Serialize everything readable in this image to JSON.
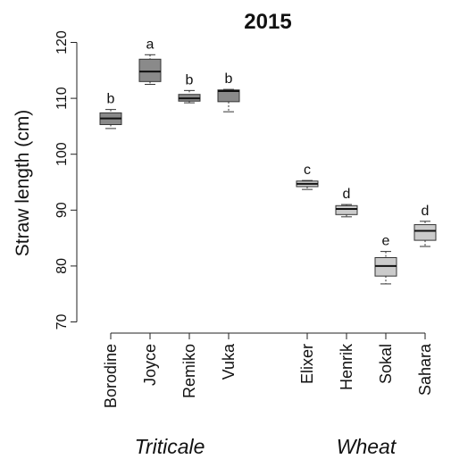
{
  "chart_data": {
    "type": "box",
    "title": "2015",
    "y_label": "Straw length (cm)",
    "ylim": [
      68,
      122
    ],
    "yticks": [
      70,
      80,
      90,
      100,
      110,
      120
    ],
    "groups": [
      {
        "name": "Triticale",
        "color": "#8a8a8a",
        "categories": [
          "Borodine",
          "Joyce",
          "Remiko",
          "Vuka"
        ],
        "min": [
          104.6,
          112.5,
          109.2,
          107.6
        ],
        "q1": [
          105.3,
          113.0,
          109.5,
          109.4
        ],
        "median": [
          106.4,
          114.8,
          110.0,
          111.3
        ],
        "q3": [
          107.4,
          117.0,
          110.7,
          111.5
        ],
        "max": [
          108.0,
          117.8,
          111.4,
          111.6
        ],
        "letters": [
          "b",
          "a",
          "b",
          "b"
        ]
      },
      {
        "name": "Wheat",
        "color": "#cbcbcb",
        "categories": [
          "Elixer",
          "Henrik",
          "Sokal",
          "Sahara"
        ],
        "min": [
          93.7,
          88.8,
          76.8,
          83.5
        ],
        "q1": [
          94.2,
          89.2,
          78.2,
          84.6
        ],
        "median": [
          94.7,
          90.2,
          80.0,
          86.3
        ],
        "q3": [
          95.2,
          90.8,
          81.5,
          87.4
        ],
        "max": [
          95.3,
          91.0,
          82.6,
          88.0
        ],
        "letters": [
          "c",
          "d",
          "e",
          "d"
        ]
      }
    ]
  }
}
